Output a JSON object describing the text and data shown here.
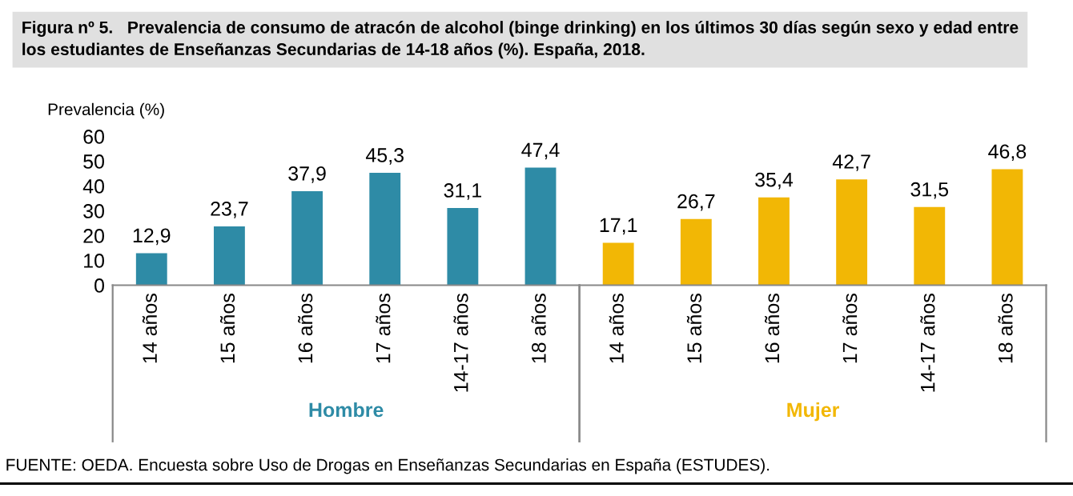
{
  "chart_data": {
    "type": "bar",
    "title": "Figura nº 5.   Prevalencia de consumo de atracón de alcohol (binge drinking) en los últimos 30 días según sexo y edad entre\nlos estudiantes de Enseñanzas Secundarias de 14-18 años (%). España, 2018.",
    "ylabel": "Prevalencia (%)",
    "categories": [
      "14 años",
      "15 años",
      "16 años",
      "17 años",
      "14-17 años",
      "18 años",
      "14 años",
      "15 años",
      "16 años",
      "17 años",
      "14-17 años",
      "18 años"
    ],
    "series": [
      {
        "name": "Hombre",
        "color": "#2e8ba6",
        "values": [
          12.9,
          23.7,
          37.9,
          45.3,
          31.1,
          47.4,
          null,
          null,
          null,
          null,
          null,
          null
        ],
        "value_labels": [
          "12,9",
          "23,7",
          "37,9",
          "45,3",
          "31,1",
          "47,4",
          null,
          null,
          null,
          null,
          null,
          null
        ]
      },
      {
        "name": "Mujer",
        "color": "#f2b705",
        "values": [
          null,
          null,
          null,
          null,
          null,
          null,
          17.1,
          26.7,
          35.4,
          42.7,
          31.5,
          46.8
        ],
        "value_labels": [
          null,
          null,
          null,
          null,
          null,
          null,
          "17,1",
          "26,7",
          "35,4",
          "42,7",
          "31,5",
          "46,8"
        ]
      }
    ],
    "ylim": [
      0,
      60
    ],
    "yticks": [
      0,
      10,
      20,
      30,
      40,
      50,
      60
    ],
    "grid": false,
    "annotations": [
      "FUENTE: OEDA. Encuesta sobre Uso de Drogas en Enseñanzas Secundarias en España (ESTUDES)."
    ]
  }
}
